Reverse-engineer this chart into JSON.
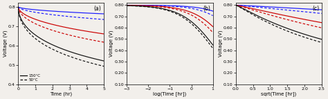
{
  "title_a": "(a)",
  "title_b": "(b)",
  "title_c": "(c)",
  "xlabel_a": "Time (hr)",
  "xlabel_b": "log(Time [hr])",
  "xlabel_c": "sqrt(Time [hr])",
  "ylabel": "Voltage (V)",
  "legend_solid": "150°C",
  "legend_dashed": "50°C",
  "colors": [
    "#1a1aff",
    "#cc0000",
    "#111111"
  ],
  "xlim_a": [
    0,
    5
  ],
  "ylim_a": [
    0.4,
    0.82
  ],
  "xlim_b": [
    -3.0,
    1.0
  ],
  "ylim_b": [
    0.1,
    0.82
  ],
  "xlim_c": [
    0.0,
    2.5
  ],
  "ylim_c": [
    0.1,
    0.82
  ],
  "bg_color": "#f2efeb",
  "params": [
    {
      "V0": 0.8,
      "A_solid": 0.012,
      "A_dashed": 0.022,
      "color_idx": 0
    },
    {
      "V0": 0.8,
      "A_solid": 0.048,
      "A_dashed": 0.068,
      "color_idx": 1
    },
    {
      "V0": 0.8,
      "A_solid": 0.11,
      "A_dashed": 0.125,
      "color_idx": 2
    }
  ],
  "yticks_a": [
    0.4,
    0.5,
    0.6,
    0.7,
    0.8
  ],
  "yticks_bc": [
    0.1,
    0.2,
    0.3,
    0.4,
    0.5,
    0.6,
    0.7,
    0.8
  ],
  "xticks_a": [
    0,
    1,
    2,
    3,
    4,
    5
  ],
  "xticks_b": [
    -3,
    -2,
    -1,
    0,
    1
  ],
  "xticks_c": [
    0.0,
    0.5,
    1.0,
    1.5,
    2.0,
    2.5
  ]
}
